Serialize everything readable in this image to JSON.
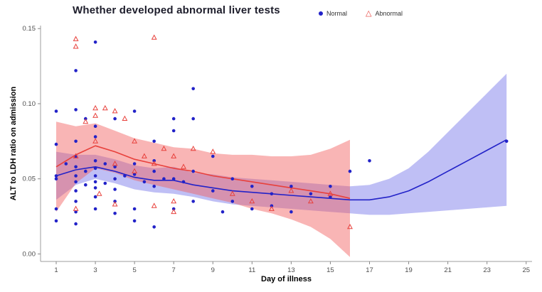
{
  "chart_data": {
    "type": "scatter",
    "title": "Whether developed abnormal liver tests",
    "xlabel": "Day of illness",
    "ylabel": "ALT to LDH ratio on admission",
    "xlim": [
      0.2,
      25.3
    ],
    "ylim": [
      -0.005,
      0.152
    ],
    "x_ticks": [
      1,
      3,
      5,
      7,
      9,
      11,
      13,
      15,
      17,
      19,
      21,
      23,
      25
    ],
    "y_ticks": [
      0.0,
      0.05,
      0.1,
      0.15
    ],
    "y_tick_labels": [
      "0.00",
      "0.05",
      "0.10",
      "0.15"
    ],
    "grid": "off",
    "legend_position": "top-right",
    "legend": {
      "items": [
        {
          "label": "Normal",
          "marker": "circle",
          "color": "#2222c8"
        },
        {
          "label": "Abnormal",
          "marker": "triangle-open",
          "color": "#e8413c"
        }
      ]
    },
    "series": [
      {
        "name": "Normal",
        "color": "#2222c8",
        "band_color": "#6666e8",
        "band_opacity": 0.42,
        "points": [
          [
            1,
            0.095
          ],
          [
            1,
            0.073
          ],
          [
            1,
            0.052
          ],
          [
            1,
            0.05
          ],
          [
            1,
            0.03
          ],
          [
            1,
            0.022
          ],
          [
            1.5,
            0.06
          ],
          [
            2,
            0.122
          ],
          [
            2,
            0.096
          ],
          [
            2,
            0.075
          ],
          [
            2,
            0.065
          ],
          [
            2,
            0.058
          ],
          [
            2,
            0.052
          ],
          [
            2,
            0.048
          ],
          [
            2,
            0.042
          ],
          [
            2,
            0.035
          ],
          [
            2,
            0.028
          ],
          [
            2,
            0.02
          ],
          [
            2.5,
            0.09
          ],
          [
            2.5,
            0.055
          ],
          [
            2.5,
            0.046
          ],
          [
            3,
            0.141
          ],
          [
            3,
            0.085
          ],
          [
            3,
            0.078
          ],
          [
            3,
            0.062
          ],
          [
            3,
            0.057
          ],
          [
            3,
            0.052
          ],
          [
            3,
            0.048
          ],
          [
            3,
            0.044
          ],
          [
            3,
            0.038
          ],
          [
            3,
            0.03
          ],
          [
            3.5,
            0.06
          ],
          [
            3.5,
            0.047
          ],
          [
            4,
            0.09
          ],
          [
            4,
            0.058
          ],
          [
            4,
            0.05
          ],
          [
            4,
            0.043
          ],
          [
            4,
            0.035
          ],
          [
            4,
            0.027
          ],
          [
            4.5,
            0.052
          ],
          [
            5,
            0.095
          ],
          [
            5,
            0.06
          ],
          [
            5,
            0.053
          ],
          [
            5,
            0.03
          ],
          [
            5,
            0.022
          ],
          [
            5.5,
            0.048
          ],
          [
            6,
            0.075
          ],
          [
            6,
            0.062
          ],
          [
            6,
            0.055
          ],
          [
            6,
            0.045
          ],
          [
            6,
            0.018
          ],
          [
            6.5,
            0.05
          ],
          [
            7,
            0.09
          ],
          [
            7,
            0.082
          ],
          [
            7,
            0.05
          ],
          [
            7,
            0.03
          ],
          [
            7.5,
            0.048
          ],
          [
            8,
            0.11
          ],
          [
            8,
            0.09
          ],
          [
            8,
            0.055
          ],
          [
            8,
            0.035
          ],
          [
            9,
            0.065
          ],
          [
            9,
            0.042
          ],
          [
            9.5,
            0.028
          ],
          [
            10,
            0.05
          ],
          [
            10,
            0.035
          ],
          [
            11,
            0.045
          ],
          [
            11,
            0.03
          ],
          [
            12,
            0.04
          ],
          [
            12,
            0.032
          ],
          [
            13,
            0.045
          ],
          [
            13,
            0.028
          ],
          [
            14,
            0.04
          ],
          [
            15,
            0.045
          ],
          [
            15,
            0.038
          ],
          [
            16,
            0.055
          ],
          [
            17,
            0.062
          ],
          [
            24,
            0.075
          ]
        ],
        "smooth": {
          "x": [
            1,
            2,
            3,
            4,
            5,
            6,
            7,
            8,
            9,
            10,
            11,
            12,
            13,
            14,
            15,
            16,
            17,
            18,
            19,
            20,
            21,
            22,
            23,
            24
          ],
          "y": [
            0.052,
            0.056,
            0.058,
            0.055,
            0.051,
            0.049,
            0.049,
            0.046,
            0.044,
            0.042,
            0.041,
            0.04,
            0.039,
            0.038,
            0.037,
            0.036,
            0.036,
            0.038,
            0.042,
            0.048,
            0.055,
            0.062,
            0.069,
            0.076
          ],
          "lower": [
            0.036,
            0.046,
            0.05,
            0.047,
            0.043,
            0.041,
            0.04,
            0.038,
            0.035,
            0.033,
            0.032,
            0.031,
            0.03,
            0.029,
            0.028,
            0.027,
            0.026,
            0.026,
            0.027,
            0.028,
            0.029,
            0.03,
            0.031,
            0.032
          ],
          "upper": [
            0.068,
            0.066,
            0.066,
            0.063,
            0.059,
            0.057,
            0.058,
            0.054,
            0.053,
            0.051,
            0.05,
            0.049,
            0.048,
            0.047,
            0.046,
            0.045,
            0.046,
            0.05,
            0.057,
            0.068,
            0.081,
            0.094,
            0.107,
            0.12
          ]
        }
      },
      {
        "name": "Abnormal",
        "color": "#e8413c",
        "band_color": "#f25c5c",
        "band_opacity": 0.45,
        "points": [
          [
            2,
            0.143
          ],
          [
            2,
            0.138
          ],
          [
            2,
            0.065
          ],
          [
            2,
            0.03
          ],
          [
            2.5,
            0.088
          ],
          [
            3,
            0.097
          ],
          [
            3,
            0.092
          ],
          [
            3,
            0.075
          ],
          [
            3.2,
            0.04
          ],
          [
            3.5,
            0.097
          ],
          [
            4,
            0.095
          ],
          [
            4,
            0.06
          ],
          [
            4,
            0.033
          ],
          [
            4.5,
            0.09
          ],
          [
            5,
            0.075
          ],
          [
            5,
            0.055
          ],
          [
            5.5,
            0.065
          ],
          [
            6,
            0.144
          ],
          [
            6,
            0.06
          ],
          [
            6,
            0.032
          ],
          [
            6.5,
            0.07
          ],
          [
            7,
            0.065
          ],
          [
            7,
            0.035
          ],
          [
            7,
            0.028
          ],
          [
            7.5,
            0.058
          ],
          [
            8,
            0.07
          ],
          [
            9,
            0.068
          ],
          [
            10,
            0.04
          ],
          [
            11,
            0.035
          ],
          [
            12,
            0.03
          ],
          [
            13,
            0.042
          ],
          [
            14,
            0.035
          ],
          [
            15,
            0.04
          ],
          [
            16,
            0.018
          ]
        ],
        "smooth": {
          "x": [
            1,
            2,
            3,
            4,
            5,
            6,
            7,
            8,
            9,
            10,
            11,
            12,
            13,
            14,
            15,
            16
          ],
          "y": [
            0.058,
            0.066,
            0.072,
            0.068,
            0.063,
            0.06,
            0.057,
            0.055,
            0.052,
            0.05,
            0.048,
            0.046,
            0.044,
            0.042,
            0.04,
            0.037
          ],
          "lower": [
            0.028,
            0.047,
            0.057,
            0.054,
            0.049,
            0.046,
            0.043,
            0.04,
            0.037,
            0.034,
            0.03,
            0.027,
            0.023,
            0.018,
            0.01,
            -0.002
          ],
          "upper": [
            0.088,
            0.085,
            0.087,
            0.082,
            0.077,
            0.074,
            0.071,
            0.07,
            0.067,
            0.066,
            0.066,
            0.065,
            0.065,
            0.066,
            0.07,
            0.076
          ]
        }
      }
    ]
  }
}
